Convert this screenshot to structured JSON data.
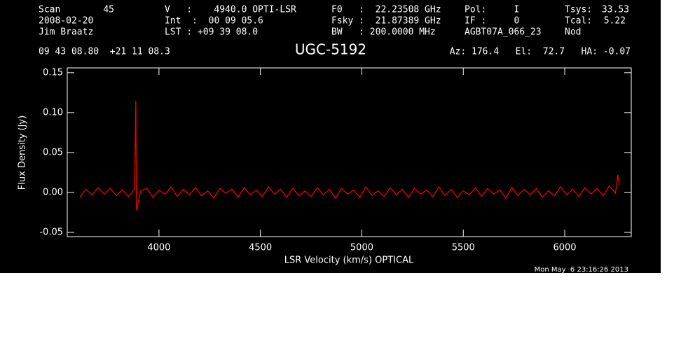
{
  "header": [
    "Scan",
    "45",
    "2008-02-20",
    "Jim Braatz",
    "V   :    4940.0 OPTI-LSR",
    "Int  :  00 09 05.6",
    "LST : +09 39 08.0",
    "F0   :  22.23508 GHz",
    "Fsky :  21.87389 GHz",
    "BW   : 200.0000 MHz",
    "Pol:     I",
    "IF :     0",
    "AGBT07A_066_23",
    "Tsys:",
    "33.53",
    "Tcal:",
    "5.22",
    "Nod",
    "09 43 08.80  +21 11 08.3",
    "Az: 176.4   El:  72.7   HA: -0.07",
    "Mon May  6 23:16:26 2013"
  ],
  "chart_data": {
    "type": "line",
    "title": "UGC-5192",
    "x_label": "LSR Velocity (km/s) OPTICAL",
    "y_label": "Flux Density (Jy)",
    "x": [
      3610,
      3640,
      3670,
      3700,
      3730,
      3760,
      3790,
      3820,
      3850,
      3880,
      3886,
      3889,
      3910,
      3940,
      3970,
      4000,
      4030,
      4060,
      4090,
      4120,
      4150,
      4180,
      4210,
      4240,
      4270,
      4300,
      4330,
      4360,
      4390,
      4420,
      4450,
      4480,
      4510,
      4540,
      4570,
      4600,
      4630,
      4660,
      4690,
      4720,
      4750,
      4780,
      4810,
      4840,
      4870,
      4900,
      4930,
      4960,
      4990,
      5020,
      5050,
      5080,
      5110,
      5140,
      5170,
      5200,
      5230,
      5260,
      5290,
      5320,
      5350,
      5380,
      5410,
      5440,
      5470,
      5500,
      5530,
      5560,
      5590,
      5620,
      5650,
      5680,
      5710,
      5740,
      5770,
      5800,
      5830,
      5860,
      5890,
      5920,
      5950,
      5980,
      6010,
      6040,
      6070,
      6100,
      6130,
      6160,
      6190,
      6220,
      6250,
      6262,
      6270
    ],
    "series": [
      {
        "color": "#ff0000",
        "values": [
          -0.006,
          0.004,
          -0.003,
          0.006,
          -0.002,
          0.005,
          -0.004,
          0.003,
          -0.005,
          0.004,
          0.115,
          -0.022,
          0.002,
          0.005,
          -0.006,
          0.003,
          -0.002,
          0.007,
          -0.005,
          0.004,
          -0.003,
          0.006,
          -0.004,
          0.002,
          -0.007,
          0.005,
          -0.001,
          0.004,
          -0.006,
          0.006,
          -0.003,
          0.003,
          -0.005,
          0.007,
          -0.002,
          0.004,
          -0.006,
          0.005,
          -0.004,
          0.002,
          -0.005,
          0.006,
          -0.003,
          0.004,
          -0.007,
          0.005,
          -0.002,
          0.003,
          -0.006,
          0.007,
          -0.004,
          0.002,
          -0.005,
          0.006,
          -0.003,
          0.004,
          -0.006,
          0.005,
          -0.002,
          0.003,
          -0.005,
          0.007,
          -0.004,
          0.004,
          -0.006,
          0.002,
          -0.003,
          0.006,
          -0.005,
          0.005,
          -0.002,
          0.003,
          -0.007,
          0.006,
          -0.004,
          0.004,
          -0.003,
          0.005,
          -0.006,
          0.002,
          -0.004,
          0.007,
          -0.003,
          0.004,
          -0.005,
          0.006,
          -0.002,
          0.005,
          -0.004,
          0.008,
          -0.001,
          0.022,
          0.009
        ]
      }
    ],
    "xlim": [
      3548,
      6328
    ],
    "ylim": [
      -0.0553,
      0.156
    ],
    "xticks": [
      4000,
      4500,
      5000,
      5500,
      6000
    ],
    "yticks": [
      {
        "value": -0.05,
        "label": "-0.05"
      },
      {
        "value": 0,
        "label": "0.00"
      },
      0.05,
      {
        "value": 0.1,
        "label": "0.10"
      },
      0.15
    ]
  }
}
